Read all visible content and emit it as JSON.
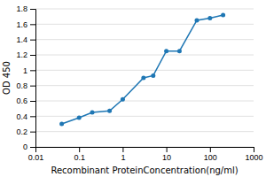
{
  "chart_data": {
    "type": "line",
    "x": [
      0.04,
      0.1,
      0.2,
      0.5,
      1,
      3,
      5,
      10,
      20,
      50,
      100,
      200
    ],
    "values": [
      0.3,
      0.38,
      0.45,
      0.47,
      0.62,
      0.9,
      0.93,
      1.25,
      1.25,
      1.65,
      1.68,
      1.72
    ],
    "xlabel": "Recombinant ProteinConcentration(ng/ml)",
    "ylabel": "OD 450",
    "log": "x",
    "xlim": [
      0.01,
      1000
    ],
    "ylim": [
      0,
      1.8
    ],
    "xticks": [
      0.01,
      0.1,
      1,
      10,
      100,
      1000
    ],
    "yticks": [
      0,
      0.2,
      0.4,
      0.6,
      0.8,
      1,
      1.2,
      1.4,
      1.6,
      1.8
    ],
    "grid": true,
    "marker": "circle"
  }
}
